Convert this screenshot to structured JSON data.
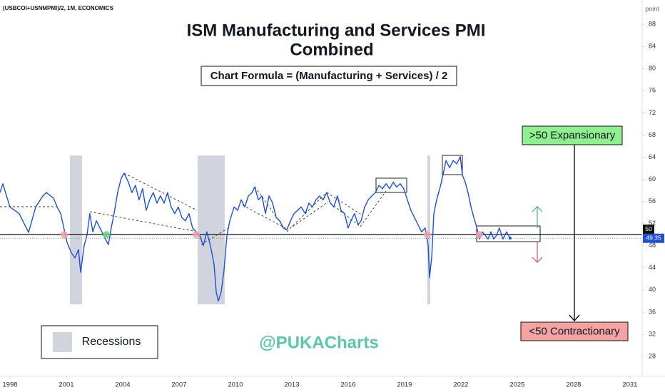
{
  "chart_data": {
    "type": "line",
    "symbol": "(USBCOI+USNMPMI)/2, 1M, ECONOMICS",
    "title": "ISM Manufacturing and Services PMI",
    "subtitle": "Combined",
    "formula": "Chart Formula = (Manufacturing + Services) / 2",
    "y_unit": "point",
    "watermark": "@PUKACharts",
    "expansion_label": ">50 Expansionary",
    "contraction_label": "<50 Contractionary",
    "recession_label": "Recessions",
    "recession_color": "#d1d4dc",
    "recessions": [
      [
        2001.19,
        2001.84
      ],
      [
        2007.99,
        2009.43
      ],
      [
        2020.22,
        2020.37
      ]
    ],
    "recession_ylim": [
      37.4,
      64.3
    ],
    "reference_line": 50,
    "color": "#1e4fd8",
    "xlim": [
      1997.47,
      2031.65
    ],
    "xticks": [
      1998,
      2001,
      2004,
      2007,
      2010,
      2013,
      2016,
      2019,
      2022,
      2025,
      2028,
      2031
    ],
    "ylim": [
      24.4,
      92.4
    ],
    "yticks": [
      28,
      32,
      36,
      40,
      44,
      48,
      52,
      56,
      60,
      64,
      68,
      72,
      76,
      80,
      84,
      88
    ],
    "markers": [
      {
        "x": 2000.89,
        "y": 50,
        "color": "#f4a0a8"
      },
      {
        "x": 2003.13,
        "y": 50,
        "color": "#5fd86f"
      },
      {
        "x": 2007.91,
        "y": 50,
        "color": "#f4a0a8"
      },
      {
        "x": 2020.22,
        "y": 50,
        "color": "#f4a0a8"
      },
      {
        "x": 2022.99,
        "y": 50,
        "color": "#f4a0a8"
      }
    ],
    "x": [
      1997.47,
      1997.62,
      1998.0,
      1998.49,
      1998.99,
      1999.37,
      1999.75,
      1999.94,
      2000.32,
      2000.51,
      2000.7,
      2001.04,
      2001.27,
      2001.46,
      2001.65,
      2001.76,
      2001.95,
      2002.1,
      2002.25,
      2002.41,
      2002.6,
      2002.79,
      2002.98,
      2003.17,
      2003.24,
      2003.39,
      2003.54,
      2003.73,
      2003.92,
      2004.08,
      2004.3,
      2004.49,
      2004.68,
      2004.87,
      2005.06,
      2005.25,
      2005.44,
      2005.63,
      2005.82,
      2006.01,
      2006.2,
      2006.39,
      2006.58,
      2006.77,
      2006.96,
      2007.15,
      2007.34,
      2007.53,
      2007.72,
      2007.91,
      2008.1,
      2008.29,
      2008.48,
      2008.67,
      2008.86,
      2008.98,
      2009.09,
      2009.24,
      2009.39,
      2009.55,
      2009.7,
      2009.93,
      2010.12,
      2010.31,
      2010.5,
      2010.69,
      2010.88,
      2011.03,
      2011.22,
      2011.41,
      2011.6,
      2011.79,
      2011.98,
      2012.17,
      2012.36,
      2012.55,
      2012.74,
      2012.93,
      2013.12,
      2013.31,
      2013.5,
      2013.72,
      2013.91,
      2014.1,
      2014.29,
      2014.48,
      2014.67,
      2014.86,
      2015.05,
      2015.24,
      2015.43,
      2015.62,
      2015.81,
      2016.0,
      2016.15,
      2016.34,
      2016.53,
      2016.69,
      2016.88,
      2017.07,
      2017.26,
      2017.45,
      2017.64,
      2017.83,
      2018.02,
      2018.21,
      2018.4,
      2018.58,
      2018.77,
      2018.96,
      2019.15,
      2019.34,
      2019.53,
      2019.72,
      2019.91,
      2020.1,
      2020.26,
      2020.33,
      2020.45,
      2020.56,
      2020.71,
      2020.9,
      2021.05,
      2021.21,
      2021.4,
      2021.59,
      2021.78,
      2021.97,
      2022.08,
      2022.23,
      2022.38,
      2022.54,
      2022.69,
      2022.84,
      2022.99,
      2023.14,
      2023.29,
      2023.45,
      2023.6,
      2023.75,
      2023.9,
      2024.05,
      2024.24,
      2024.43,
      2024.62
    ],
    "values": [
      57.6,
      59.2,
      55.0,
      53.8,
      50.4,
      55.0,
      57.0,
      57.6,
      56.6,
      55.0,
      53.8,
      48.6,
      46.7,
      45.8,
      47.3,
      43.2,
      48.0,
      49.9,
      53.8,
      50.5,
      52.5,
      51.2,
      49.9,
      48.6,
      48.2,
      51.2,
      53.8,
      57.6,
      60.2,
      61.1,
      59.5,
      57.6,
      58.9,
      56.3,
      58.3,
      54.4,
      56.3,
      57.6,
      55.7,
      57.0,
      55.7,
      57.6,
      55.0,
      53.8,
      55.0,
      53.1,
      52.5,
      53.8,
      51.2,
      50.5,
      49.9,
      48.0,
      50.5,
      48.0,
      44.7,
      39.6,
      38.0,
      39.6,
      43.5,
      49.9,
      52.5,
      55.0,
      54.4,
      56.3,
      55.0,
      57.0,
      57.6,
      58.6,
      56.3,
      57.0,
      53.8,
      57.0,
      55.7,
      53.1,
      52.5,
      51.2,
      50.9,
      52.5,
      53.8,
      54.4,
      55.0,
      53.8,
      55.7,
      55.0,
      56.3,
      57.0,
      56.3,
      57.6,
      55.7,
      55.0,
      57.0,
      54.4,
      53.8,
      51.2,
      52.5,
      53.8,
      51.8,
      52.5,
      55.0,
      56.3,
      57.0,
      57.6,
      58.9,
      58.3,
      59.2,
      58.3,
      59.5,
      58.6,
      59.2,
      58.3,
      56.3,
      54.4,
      53.1,
      51.8,
      50.5,
      51.2,
      48.0,
      42.2,
      46.0,
      53.8,
      56.3,
      58.6,
      60.8,
      63.4,
      62.1,
      63.4,
      62.8,
      64.1,
      60.8,
      59.5,
      57.6,
      55.0,
      53.1,
      51.4,
      49.2,
      50.5,
      49.9,
      49.2,
      50.5,
      49.2,
      49.9,
      51.2,
      49.2,
      50.5,
      49.35
    ]
  }
}
